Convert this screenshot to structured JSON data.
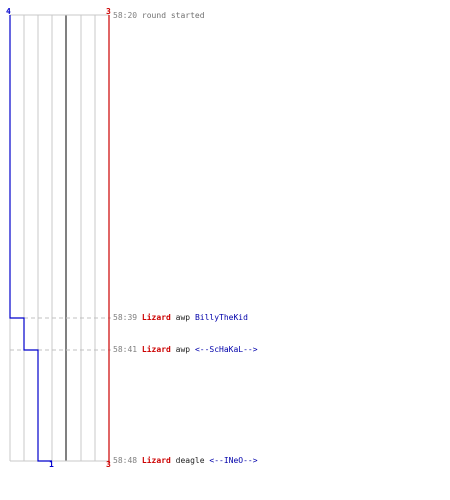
{
  "counts": {
    "blue_start": "4",
    "red_start": "3",
    "blue_end": "1",
    "red_end": "3"
  },
  "colors": {
    "blue": "#0000cc",
    "red": "#cc0000",
    "grid": "#c8c8c8",
    "grid_dark": "#808080",
    "dash": "#c0c0c0"
  },
  "events": [
    {
      "time": "58:20",
      "text": "round started"
    },
    {
      "time": "58:39",
      "killer": "Lizard",
      "weapon": "awp",
      "victim": "BillyTheKid"
    },
    {
      "time": "58:41",
      "killer": "Lizard",
      "weapon": "awp",
      "victim": "<--ScHaKaL-->"
    },
    {
      "time": "58:48",
      "killer": "Lizard",
      "weapon": "deagle",
      "victim": "<--INeO-->"
    }
  ]
}
